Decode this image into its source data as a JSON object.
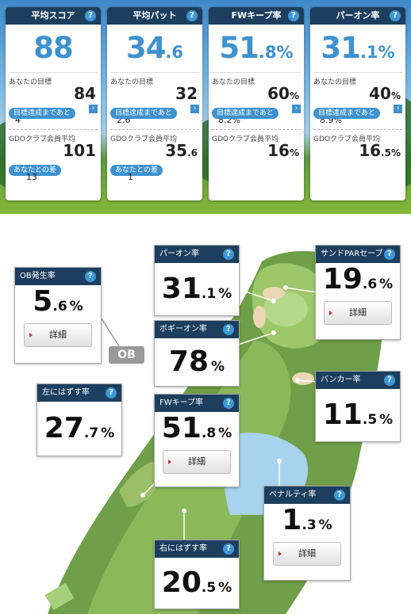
{
  "summary": {
    "cards": [
      {
        "title": "平均スコア",
        "main_int": "88",
        "main_dec": "",
        "main_unit": "",
        "goal_label": "あなたの目標",
        "goal_int": "84",
        "goal_dec": "",
        "goal_unit": "",
        "remain_label": "目標達成まであと",
        "remain": "4",
        "avg_label": "GDOクラブ会員平均",
        "avg_int": "101",
        "avg_dec": "",
        "avg_unit": "",
        "diff_label": "あなたとの差",
        "diff": "13"
      },
      {
        "title": "平均パット",
        "main_int": "34",
        "main_dec": ".6",
        "main_unit": "",
        "goal_label": "あなたの目標",
        "goal_int": "32",
        "goal_dec": "",
        "goal_unit": "",
        "remain_label": "目標達成まであと",
        "remain": "2.6",
        "avg_label": "GDOクラブ会員平均",
        "avg_int": "35",
        "avg_dec": ".6",
        "avg_unit": "",
        "diff_label": "あなたとの差",
        "diff": "1"
      },
      {
        "title": "FWキープ率",
        "main_int": "51",
        "main_dec": ".8",
        "main_unit": "%",
        "goal_label": "あなたの目標",
        "goal_int": "60",
        "goal_dec": "",
        "goal_unit": "%",
        "remain_label": "目標達成まであと",
        "remain": "8.2%",
        "avg_label": "GDOクラブ会員平均",
        "avg_int": "16",
        "avg_dec": "",
        "avg_unit": "%",
        "diff_label": "",
        "diff": ""
      },
      {
        "title": "パーオン率",
        "main_int": "31",
        "main_dec": ".1",
        "main_unit": "%",
        "goal_label": "あなたの目標",
        "goal_int": "40",
        "goal_dec": "",
        "goal_unit": "%",
        "remain_label": "目標達成まであと",
        "remain": "8.9%",
        "avg_label": "GDOクラブ会員平均",
        "avg_int": "16",
        "avg_dec": ".5",
        "avg_unit": "%",
        "diff_label": "",
        "diff": ""
      }
    ]
  },
  "course": {
    "ob_tag": "OB",
    "detail_label": "詳細",
    "stats": [
      {
        "title": "OB発生率",
        "int": "5",
        "dec": ".6",
        "unit": "%"
      },
      {
        "title": "パーオン率",
        "int": "31",
        "dec": ".1",
        "unit": "%"
      },
      {
        "title": "サンドPARセーブ",
        "int": "19",
        "dec": ".6",
        "unit": "%"
      },
      {
        "title": "ボギーオン率",
        "int": "78",
        "dec": "",
        "unit": "%"
      },
      {
        "title": "バンカー率",
        "int": "11",
        "dec": ".5",
        "unit": "%"
      },
      {
        "title": "左にはずす率",
        "int": "27",
        "dec": ".7",
        "unit": "%"
      },
      {
        "title": "FWキープ率",
        "int": "51",
        "dec": ".8",
        "unit": "%"
      },
      {
        "title": "ペナルティ率",
        "int": "1",
        "dec": ".3",
        "unit": "%"
      },
      {
        "title": "右にはずす率",
        "int": "20",
        "dec": ".5",
        "unit": "%"
      }
    ]
  },
  "icons": {
    "help": "?",
    "arrow": "›"
  }
}
